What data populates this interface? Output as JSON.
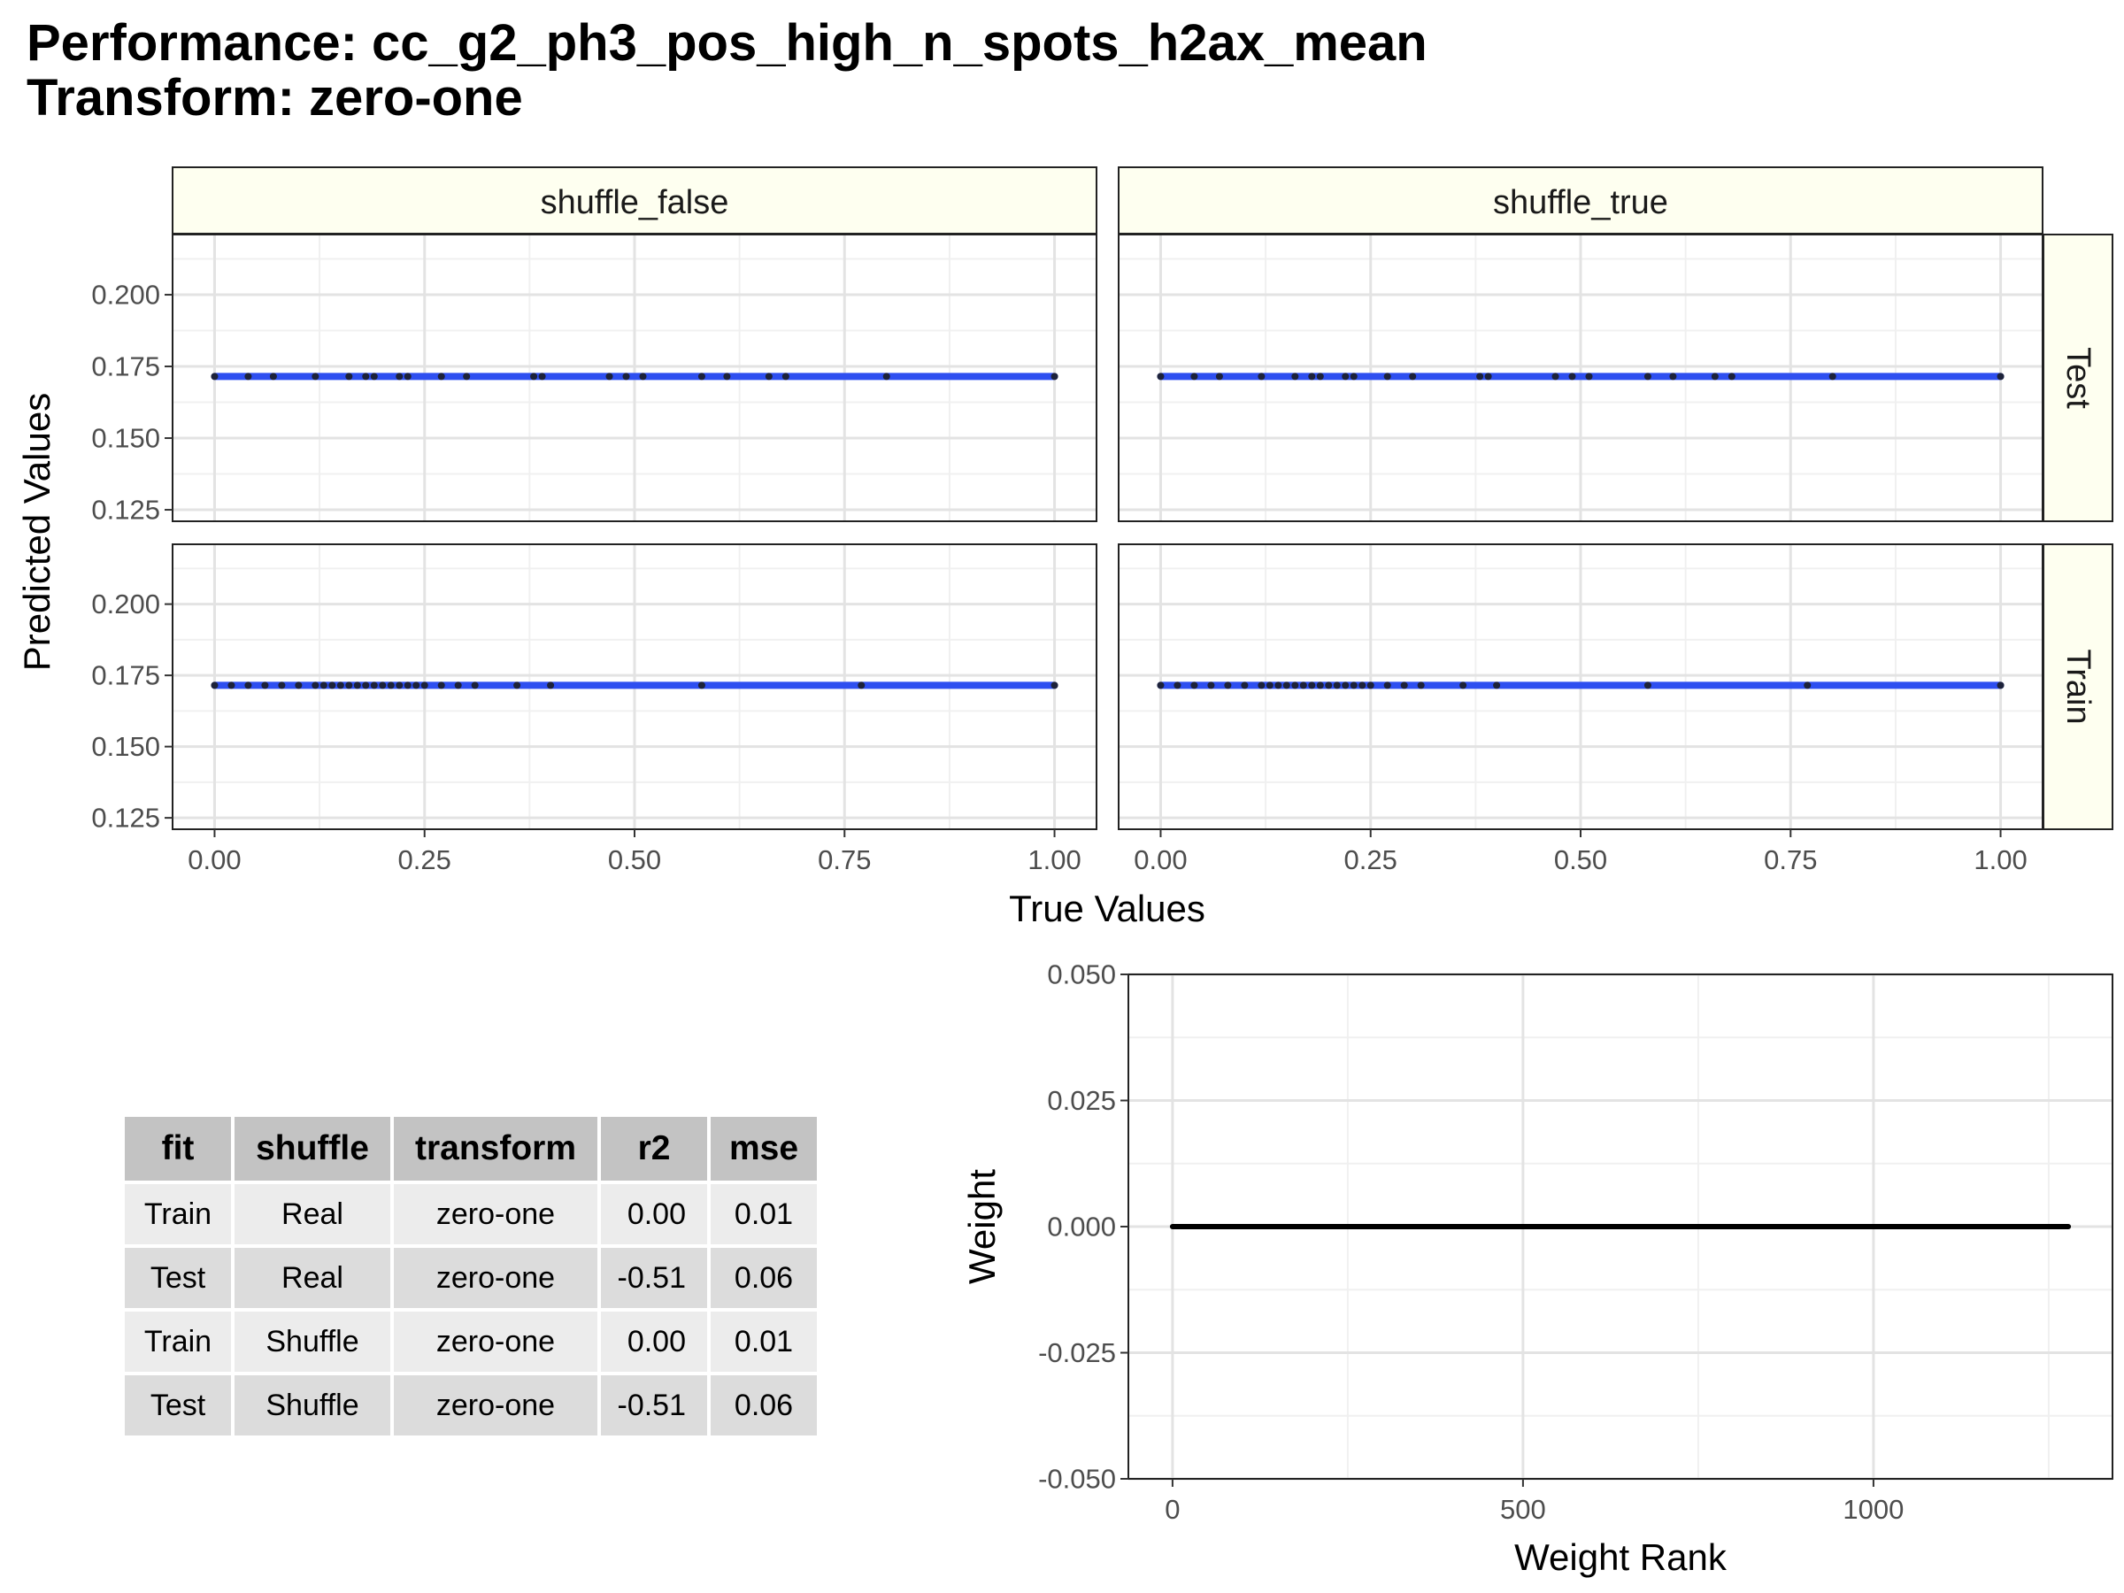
{
  "title": {
    "line1": "Performance: cc_g2_ph3_pos_high_n_spots_h2ax_mean",
    "line2": "Transform: zero-one"
  },
  "chart_data": [
    {
      "type": "scatter",
      "facet_columns": [
        "shuffle_false",
        "shuffle_true"
      ],
      "facet_rows": [
        "Test",
        "Train"
      ],
      "xlabel": "True Values",
      "ylabel": "Predicted Values",
      "xlim": [
        -0.05,
        1.05
      ],
      "ylim": [
        0.121,
        0.221
      ],
      "x_ticks": [
        0,
        0.25,
        0.5,
        0.75,
        1.0
      ],
      "x_tick_labels": [
        "0.00",
        "0.25",
        "0.50",
        "0.75",
        "1.00"
      ],
      "y_ticks": [
        0.125,
        0.15,
        0.175,
        0.2
      ],
      "y_tick_labels": [
        "0.125",
        "0.150",
        "0.175",
        "0.200"
      ],
      "fit_line": {
        "color": "#2e4ff0",
        "y": 0.1715,
        "x": [
          0,
          1
        ]
      },
      "point_color": "#1a1a1a",
      "panels": [
        {
          "col": "shuffle_false",
          "row": "Test",
          "points": [
            {
              "x": 0.0,
              "y": 0.1715
            },
            {
              "x": 0.04,
              "y": 0.1715
            },
            {
              "x": 0.07,
              "y": 0.1715
            },
            {
              "x": 0.12,
              "y": 0.1715
            },
            {
              "x": 0.16,
              "y": 0.1715
            },
            {
              "x": 0.18,
              "y": 0.1715
            },
            {
              "x": 0.19,
              "y": 0.1715
            },
            {
              "x": 0.22,
              "y": 0.1715
            },
            {
              "x": 0.23,
              "y": 0.1715
            },
            {
              "x": 0.27,
              "y": 0.1715
            },
            {
              "x": 0.3,
              "y": 0.1715
            },
            {
              "x": 0.38,
              "y": 0.1715
            },
            {
              "x": 0.39,
              "y": 0.1715
            },
            {
              "x": 0.47,
              "y": 0.1715
            },
            {
              "x": 0.49,
              "y": 0.1715
            },
            {
              "x": 0.51,
              "y": 0.1715
            },
            {
              "x": 0.58,
              "y": 0.1715
            },
            {
              "x": 0.61,
              "y": 0.1715
            },
            {
              "x": 0.66,
              "y": 0.1715
            },
            {
              "x": 0.68,
              "y": 0.1715
            },
            {
              "x": 0.8,
              "y": 0.1715
            },
            {
              "x": 1.0,
              "y": 0.1715
            }
          ]
        },
        {
          "col": "shuffle_true",
          "row": "Test",
          "points": [
            {
              "x": 0.0,
              "y": 0.1715
            },
            {
              "x": 0.04,
              "y": 0.1715
            },
            {
              "x": 0.07,
              "y": 0.1715
            },
            {
              "x": 0.12,
              "y": 0.1715
            },
            {
              "x": 0.16,
              "y": 0.1715
            },
            {
              "x": 0.18,
              "y": 0.1715
            },
            {
              "x": 0.19,
              "y": 0.1715
            },
            {
              "x": 0.22,
              "y": 0.1715
            },
            {
              "x": 0.23,
              "y": 0.1715
            },
            {
              "x": 0.27,
              "y": 0.1715
            },
            {
              "x": 0.3,
              "y": 0.1715
            },
            {
              "x": 0.38,
              "y": 0.1715
            },
            {
              "x": 0.39,
              "y": 0.1715
            },
            {
              "x": 0.47,
              "y": 0.1715
            },
            {
              "x": 0.49,
              "y": 0.1715
            },
            {
              "x": 0.51,
              "y": 0.1715
            },
            {
              "x": 0.58,
              "y": 0.1715
            },
            {
              "x": 0.61,
              "y": 0.1715
            },
            {
              "x": 0.66,
              "y": 0.1715
            },
            {
              "x": 0.68,
              "y": 0.1715
            },
            {
              "x": 0.8,
              "y": 0.1715
            },
            {
              "x": 1.0,
              "y": 0.1715
            }
          ]
        },
        {
          "col": "shuffle_false",
          "row": "Train",
          "points": [
            {
              "x": 0.0,
              "y": 0.1715
            },
            {
              "x": 0.02,
              "y": 0.1715
            },
            {
              "x": 0.04,
              "y": 0.1715
            },
            {
              "x": 0.06,
              "y": 0.1715
            },
            {
              "x": 0.08,
              "y": 0.1715
            },
            {
              "x": 0.1,
              "y": 0.1715
            },
            {
              "x": 0.12,
              "y": 0.1715
            },
            {
              "x": 0.13,
              "y": 0.1715
            },
            {
              "x": 0.14,
              "y": 0.1715
            },
            {
              "x": 0.15,
              "y": 0.1715
            },
            {
              "x": 0.16,
              "y": 0.1715
            },
            {
              "x": 0.17,
              "y": 0.1715
            },
            {
              "x": 0.18,
              "y": 0.1715
            },
            {
              "x": 0.19,
              "y": 0.1715
            },
            {
              "x": 0.2,
              "y": 0.1715
            },
            {
              "x": 0.21,
              "y": 0.1715
            },
            {
              "x": 0.22,
              "y": 0.1715
            },
            {
              "x": 0.23,
              "y": 0.1715
            },
            {
              "x": 0.24,
              "y": 0.1715
            },
            {
              "x": 0.25,
              "y": 0.1715
            },
            {
              "x": 0.27,
              "y": 0.1715
            },
            {
              "x": 0.29,
              "y": 0.1715
            },
            {
              "x": 0.31,
              "y": 0.1715
            },
            {
              "x": 0.36,
              "y": 0.1715
            },
            {
              "x": 0.4,
              "y": 0.1715
            },
            {
              "x": 0.58,
              "y": 0.1715
            },
            {
              "x": 0.77,
              "y": 0.1715
            },
            {
              "x": 1.0,
              "y": 0.1715
            }
          ]
        },
        {
          "col": "shuffle_true",
          "row": "Train",
          "points": [
            {
              "x": 0.0,
              "y": 0.1715
            },
            {
              "x": 0.02,
              "y": 0.1715
            },
            {
              "x": 0.04,
              "y": 0.1715
            },
            {
              "x": 0.06,
              "y": 0.1715
            },
            {
              "x": 0.08,
              "y": 0.1715
            },
            {
              "x": 0.1,
              "y": 0.1715
            },
            {
              "x": 0.12,
              "y": 0.1715
            },
            {
              "x": 0.13,
              "y": 0.1715
            },
            {
              "x": 0.14,
              "y": 0.1715
            },
            {
              "x": 0.15,
              "y": 0.1715
            },
            {
              "x": 0.16,
              "y": 0.1715
            },
            {
              "x": 0.17,
              "y": 0.1715
            },
            {
              "x": 0.18,
              "y": 0.1715
            },
            {
              "x": 0.19,
              "y": 0.1715
            },
            {
              "x": 0.2,
              "y": 0.1715
            },
            {
              "x": 0.21,
              "y": 0.1715
            },
            {
              "x": 0.22,
              "y": 0.1715
            },
            {
              "x": 0.23,
              "y": 0.1715
            },
            {
              "x": 0.24,
              "y": 0.1715
            },
            {
              "x": 0.25,
              "y": 0.1715
            },
            {
              "x": 0.27,
              "y": 0.1715
            },
            {
              "x": 0.29,
              "y": 0.1715
            },
            {
              "x": 0.31,
              "y": 0.1715
            },
            {
              "x": 0.36,
              "y": 0.1715
            },
            {
              "x": 0.4,
              "y": 0.1715
            },
            {
              "x": 0.58,
              "y": 0.1715
            },
            {
              "x": 0.77,
              "y": 0.1715
            },
            {
              "x": 1.0,
              "y": 0.1715
            }
          ]
        }
      ]
    },
    {
      "type": "table",
      "columns": [
        "fit",
        "shuffle",
        "transform",
        "r2",
        "mse"
      ],
      "rows": [
        [
          "Train",
          "Real",
          "zero-one",
          "0.00",
          "0.01"
        ],
        [
          "Test",
          "Real",
          "zero-one",
          "-0.51",
          "0.06"
        ],
        [
          "Train",
          "Shuffle",
          "zero-one",
          "0.00",
          "0.01"
        ],
        [
          "Test",
          "Shuffle",
          "zero-one",
          "-0.51",
          "0.06"
        ]
      ]
    },
    {
      "type": "line",
      "xlabel": "Weight Rank",
      "ylabel": "Weight",
      "xlim": [
        -63,
        1341
      ],
      "ylim": [
        -0.05,
        0.05
      ],
      "x_ticks": [
        0,
        500,
        1000
      ],
      "x_tick_labels": [
        "0",
        "500",
        "1000"
      ],
      "y_ticks": [
        -0.05,
        -0.025,
        0,
        0.025,
        0.05
      ],
      "y_tick_labels": [
        "-0.050",
        "-0.025",
        "0.000",
        "0.025",
        "0.050"
      ],
      "series": [
        {
          "color": "#000000",
          "x": [
            0,
            1278
          ],
          "values": [
            0,
            0
          ]
        }
      ]
    }
  ]
}
